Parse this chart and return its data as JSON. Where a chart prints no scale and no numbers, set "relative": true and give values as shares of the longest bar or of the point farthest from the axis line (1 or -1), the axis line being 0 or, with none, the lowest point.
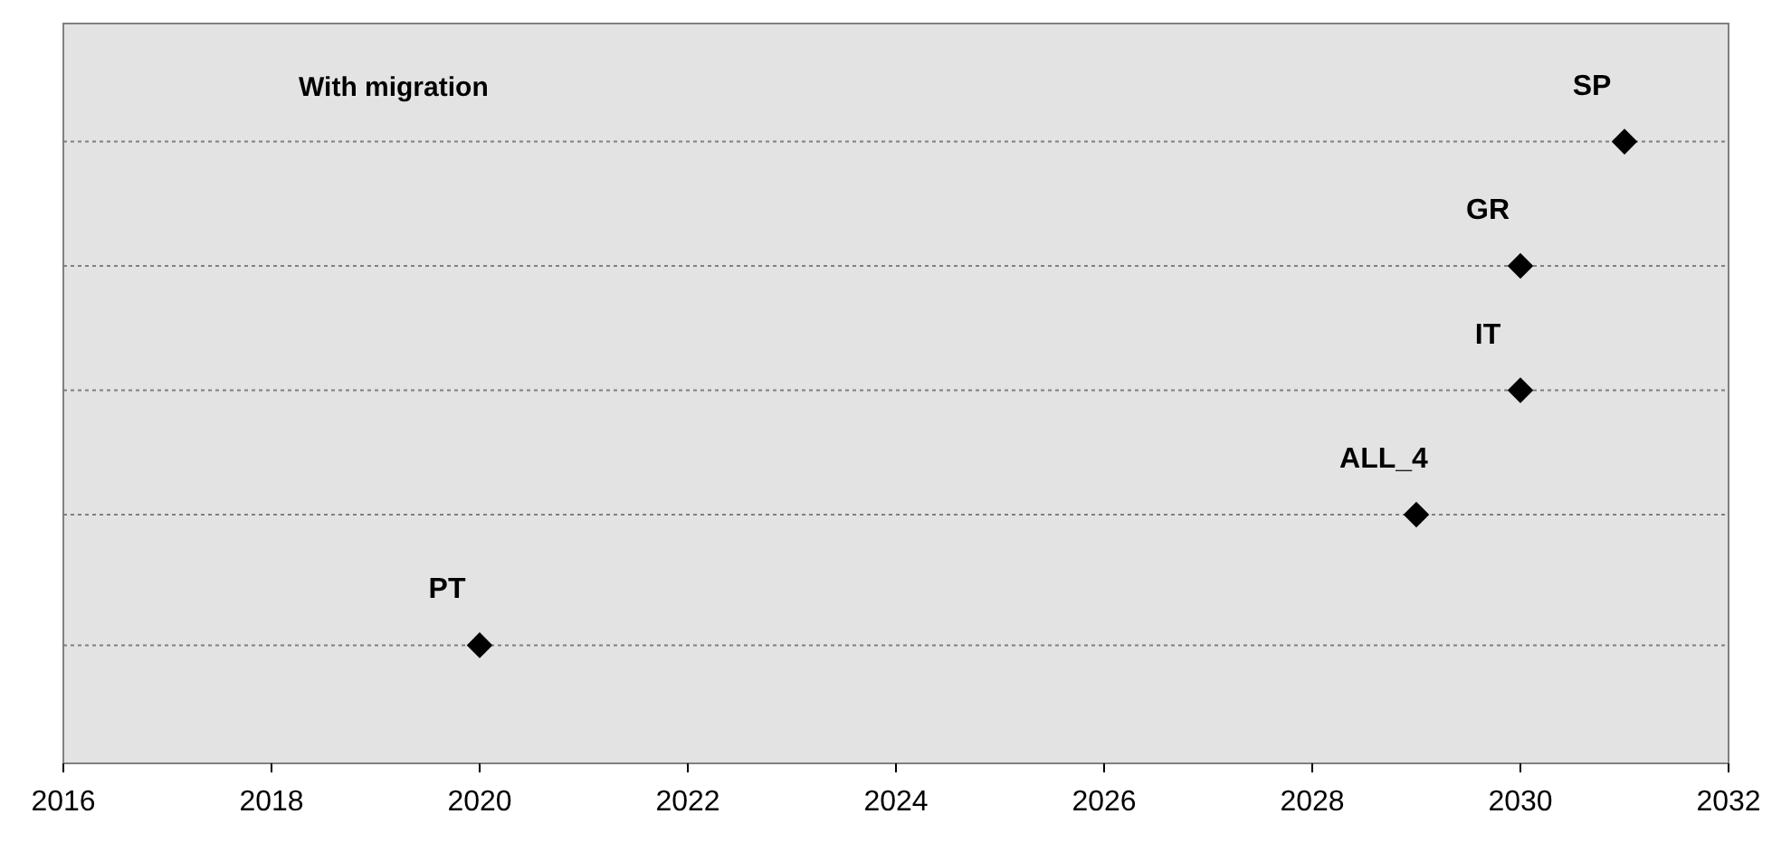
{
  "chart_data": {
    "type": "scatter",
    "title": "With migration",
    "relative": true,
    "marker": "diamond",
    "x": [
      2031,
      2030,
      2030,
      2029,
      2020
    ],
    "series": [
      {
        "color": "#000000",
        "values": [
          1,
          0.8,
          0.6,
          0.4,
          0.19
        ]
      }
    ],
    "xlim": [
      2016,
      2032
    ],
    "xticks": [
      2016,
      2018,
      2020,
      2022,
      2024,
      2026,
      2028,
      2030,
      2032
    ],
    "tick_labels": "x",
    "ref_lines": [
      {
        "axis": "y",
        "value": 1,
        "color": "#808080",
        "line_style": "dotted"
      },
      {
        "axis": "y",
        "value": 0.8,
        "color": "#808080",
        "line_style": "dotted"
      },
      {
        "axis": "y",
        "value": 0.6,
        "color": "#808080",
        "line_style": "dotted"
      },
      {
        "axis": "y",
        "value": 0.4,
        "color": "#808080",
        "line_style": "dotted"
      },
      {
        "axis": "y",
        "value": 0.19,
        "color": "#808080",
        "line_style": "dotted"
      }
    ],
    "annotations": [
      {
        "text": "SP",
        "x": 2031,
        "y": 1
      },
      {
        "text": "GR",
        "x": 2030,
        "y": 0.8
      },
      {
        "text": "IT",
        "x": 2030,
        "y": 0.6
      },
      {
        "text": "ALL_4",
        "x": 2029,
        "y": 0.4
      },
      {
        "text": "PT",
        "x": 2020,
        "y": 0.19
      }
    ]
  }
}
